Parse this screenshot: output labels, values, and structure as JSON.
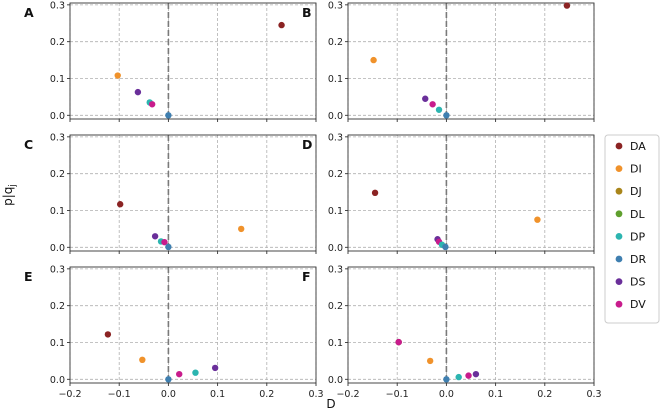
{
  "chart_data": {
    "type": "scatter",
    "xlabel": "D",
    "ylabel": "p|q_j",
    "xlim": [
      -0.2,
      0.3
    ],
    "ylim": [
      -0.01,
      0.305
    ],
    "xticks": [
      -0.2,
      -0.1,
      0.0,
      0.1,
      0.2,
      0.3
    ],
    "xtick_labels": [
      "−0.2",
      "−0.1",
      "0.0",
      "0.1",
      "0.2",
      "0.3"
    ],
    "yticks": [
      0.0,
      0.1,
      0.2,
      0.3
    ],
    "ytick_labels": [
      "0.0",
      "0.1",
      "0.2",
      "0.3"
    ],
    "grid": true,
    "vertical_reference_line_x": 0,
    "legend_placement": "right",
    "legend": [
      {
        "name": "DA",
        "color": "#8b2323"
      },
      {
        "name": "DI",
        "color": "#f0922b"
      },
      {
        "name": "DJ",
        "color": "#a9851a"
      },
      {
        "name": "DL",
        "color": "#5f9f2e"
      },
      {
        "name": "DP",
        "color": "#2cb5b0"
      },
      {
        "name": "DR",
        "color": "#3f7fb0"
      },
      {
        "name": "DS",
        "color": "#6a2f9a"
      },
      {
        "name": "DV",
        "color": "#c81c8c"
      }
    ],
    "panels": [
      {
        "label": "A",
        "points": [
          {
            "series": "DA",
            "x": 0.23,
            "y": 0.245
          },
          {
            "series": "DI",
            "x": -0.103,
            "y": 0.108
          },
          {
            "series": "DS",
            "x": -0.062,
            "y": 0.063
          },
          {
            "series": "DP",
            "x": -0.038,
            "y": 0.035
          },
          {
            "series": "DV",
            "x": -0.033,
            "y": 0.03
          },
          {
            "series": "DR",
            "x": 0.0,
            "y": 0.0
          }
        ]
      },
      {
        "label": "B",
        "points": [
          {
            "series": "DA",
            "x": 0.245,
            "y": 0.298
          },
          {
            "series": "DI",
            "x": -0.148,
            "y": 0.15
          },
          {
            "series": "DS",
            "x": -0.043,
            "y": 0.045
          },
          {
            "series": "DV",
            "x": -0.028,
            "y": 0.03
          },
          {
            "series": "DP",
            "x": -0.015,
            "y": 0.015
          },
          {
            "series": "DR",
            "x": 0.0,
            "y": 0.0
          }
        ]
      },
      {
        "label": "C",
        "points": [
          {
            "series": "DA",
            "x": -0.098,
            "y": 0.117
          },
          {
            "series": "DI",
            "x": 0.148,
            "y": 0.05
          },
          {
            "series": "DS",
            "x": -0.027,
            "y": 0.03
          },
          {
            "series": "DP",
            "x": -0.015,
            "y": 0.016
          },
          {
            "series": "DV",
            "x": -0.008,
            "y": 0.014
          },
          {
            "series": "DR",
            "x": 0.0,
            "y": 0.001
          }
        ]
      },
      {
        "label": "D",
        "points": [
          {
            "series": "DA",
            "x": -0.145,
            "y": 0.148
          },
          {
            "series": "DI",
            "x": 0.185,
            "y": 0.075
          },
          {
            "series": "DS",
            "x": -0.018,
            "y": 0.022
          },
          {
            "series": "DV",
            "x": -0.015,
            "y": 0.015
          },
          {
            "series": "DP",
            "x": -0.009,
            "y": 0.007
          },
          {
            "series": "DR",
            "x": -0.002,
            "y": 0.001
          }
        ]
      },
      {
        "label": "E",
        "points": [
          {
            "series": "DA",
            "x": -0.123,
            "y": 0.122
          },
          {
            "series": "DI",
            "x": -0.053,
            "y": 0.053
          },
          {
            "series": "DS",
            "x": 0.095,
            "y": 0.031
          },
          {
            "series": "DP",
            "x": 0.055,
            "y": 0.018
          },
          {
            "series": "DV",
            "x": 0.022,
            "y": 0.014
          },
          {
            "series": "DR",
            "x": 0.0,
            "y": 0.0
          }
        ]
      },
      {
        "label": "F",
        "points": [
          {
            "series": "DA",
            "x": -0.097,
            "y": 0.101
          },
          {
            "series": "DV",
            "x": -0.097,
            "y": 0.101
          },
          {
            "series": "DI",
            "x": -0.033,
            "y": 0.05
          },
          {
            "series": "DS",
            "x": 0.06,
            "y": 0.014
          },
          {
            "series": "DV",
            "x": 0.045,
            "y": 0.01
          },
          {
            "series": "DP",
            "x": 0.025,
            "y": 0.006
          },
          {
            "series": "DR",
            "x": 0.0,
            "y": 0.0
          }
        ]
      }
    ]
  }
}
